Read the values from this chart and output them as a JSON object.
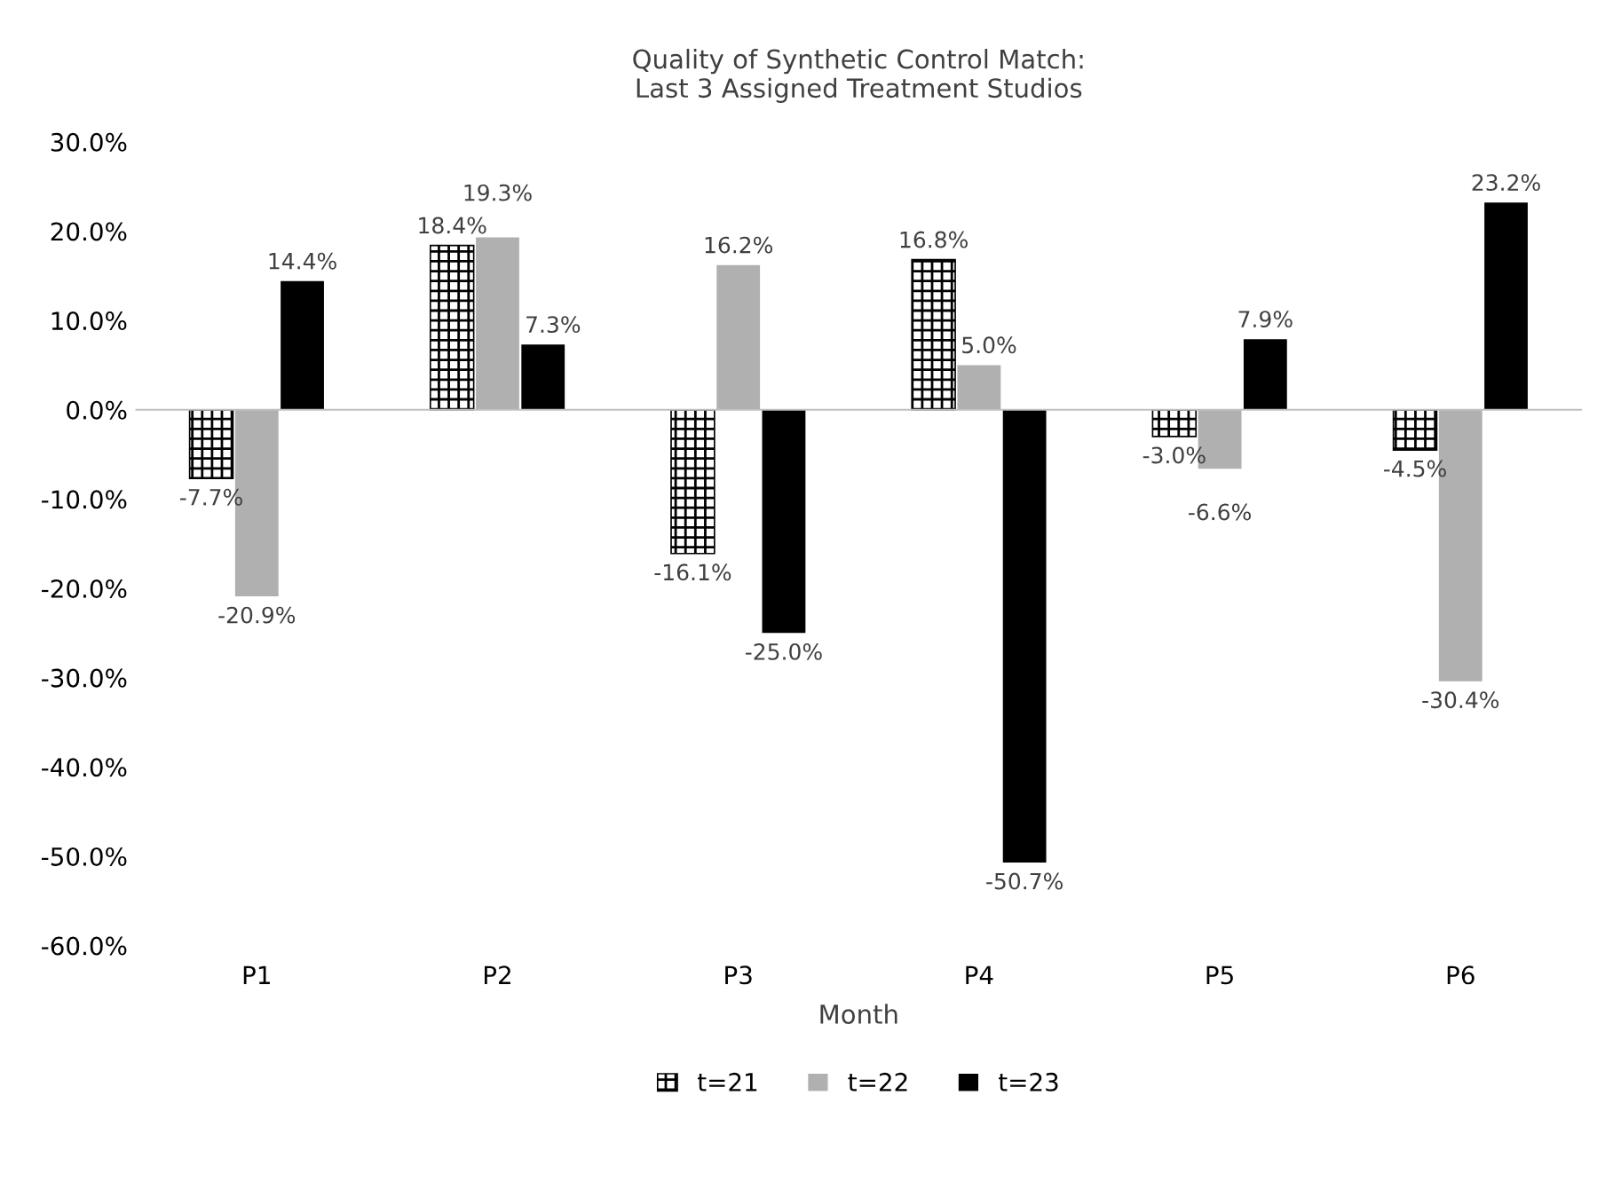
{
  "chart_data": {
    "type": "bar",
    "title": "Quality of Synthetic Control Match:\nLast 3 Assigned Treatment Studios",
    "xlabel": "Month",
    "categories": [
      "P1",
      "P2",
      "P3",
      "P4",
      "P5",
      "P6"
    ],
    "series": [
      {
        "name": "t=21",
        "color": "#000000",
        "values": [
          -7.7,
          18.4,
          -16.1,
          16.8,
          -3.0,
          -4.5
        ],
        "value_labels": [
          "-7.7%",
          "18.4%",
          "-16.1%",
          "16.8%",
          "-3.0%",
          "-4.5%"
        ]
      },
      {
        "name": "t=22",
        "color": "#b0b0b0",
        "values": [
          -20.9,
          19.3,
          16.2,
          5.0,
          -6.6,
          -30.4
        ],
        "value_labels": [
          "-20.9%",
          "19.3%",
          "16.2%",
          "5.0%",
          "-6.6%",
          "-30.4%"
        ]
      },
      {
        "name": "t=23",
        "color": "#000000",
        "values": [
          14.4,
          7.3,
          -25.0,
          -50.7,
          7.9,
          23.2
        ],
        "value_labels": [
          "14.4%",
          "7.3%",
          "-25.0%",
          "-50.7%",
          "7.9%",
          "23.2%"
        ]
      }
    ],
    "ylim": [
      -60,
      30
    ],
    "yticks": [
      {
        "value": -60,
        "label": "-60.0%"
      },
      {
        "value": -50,
        "label": "-50.0%"
      },
      {
        "value": -40,
        "label": "-40.0%"
      },
      {
        "value": -30,
        "label": "-30.0%"
      },
      {
        "value": -20,
        "label": "-20.0%"
      },
      {
        "value": -10,
        "label": "-10.0%"
      },
      {
        "value": 0,
        "label": "0.0%"
      },
      {
        "value": 10,
        "label": "10.0%"
      },
      {
        "value": 20,
        "label": "20.0%"
      },
      {
        "value": 30,
        "label": "30.0%"
      }
    ],
    "legend": "bottom"
  }
}
